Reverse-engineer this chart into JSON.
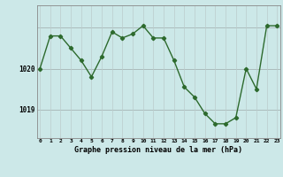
{
  "x": [
    0,
    1,
    2,
    3,
    4,
    5,
    6,
    7,
    8,
    9,
    10,
    11,
    12,
    13,
    14,
    15,
    16,
    17,
    18,
    19,
    20,
    21,
    22,
    23
  ],
  "y": [
    1020.0,
    1020.8,
    1020.8,
    1020.5,
    1020.2,
    1019.8,
    1020.3,
    1020.9,
    1020.75,
    1020.85,
    1021.05,
    1020.75,
    1020.75,
    1020.2,
    1019.55,
    1019.3,
    1018.9,
    1018.65,
    1018.65,
    1018.8,
    1020.0,
    1019.5,
    1021.05,
    1021.05
  ],
  "line_color": "#2d6a2d",
  "marker_color": "#2d6a2d",
  "bg_color": "#cce8e8",
  "grid_h_color": "#aabbbb",
  "grid_v_color": "#bbcccc",
  "xlabel": "Graphe pression niveau de la mer (hPa)",
  "ylim_min": 1018.3,
  "ylim_max": 1021.55,
  "xlim_min": -0.3,
  "xlim_max": 23.3
}
